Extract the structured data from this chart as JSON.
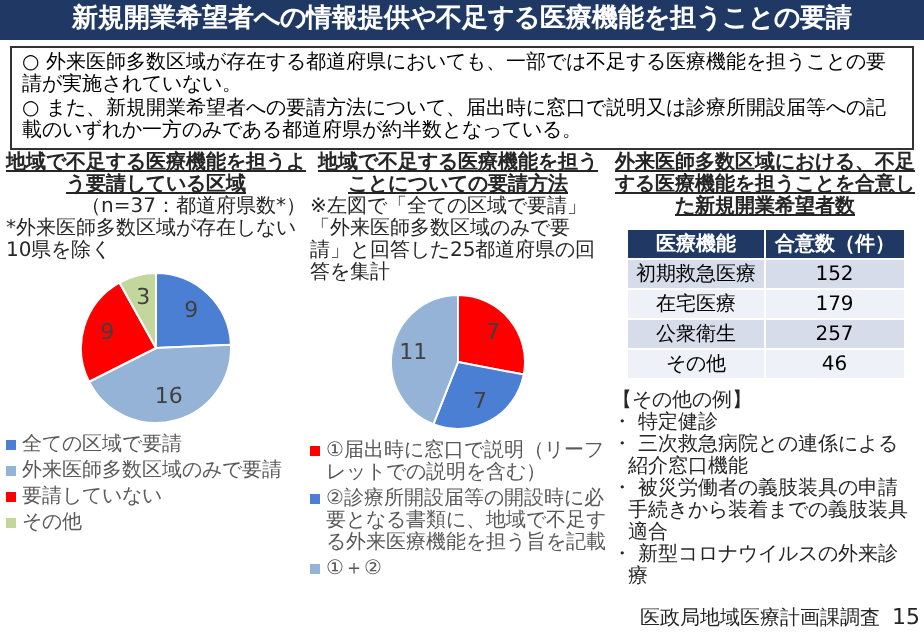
{
  "chart_data": [
    {
      "type": "other",
      "title": "新規開業希望者への情報提供や不足する医療機能を担うことの要請",
      "annotations": [
        "○ 外来医師多数区域が存在する都道府県においても、一部では不足する医療機能を担うことの要請が実施されていない。",
        "○ また、新規開業希望者への要請方法について、届出時に窓口で説明又は診療所開設届等への記載のいずれか一方のみである都道府県が約半数となっている。"
      ]
    },
    {
      "type": "pie",
      "title": "地域で不足する医療機能を担うよう要請している区域",
      "subtitle": "（n=37：都道府県数*）",
      "annotations": [
        "*外来医師多数区域が存在しない10県を除く"
      ],
      "categories": [
        "全ての区域で要請",
        "外来医師多数区域のみで要請",
        "要請していない",
        "その他"
      ],
      "values": [
        9,
        16,
        9,
        3
      ],
      "colors": [
        "#4a7fd4",
        "#95b3d7",
        "#ff0000",
        "#c3d69b"
      ],
      "data_labels": true,
      "legend": "bottom"
    },
    {
      "type": "pie",
      "title": "地域で不足する医療機能を担うことについての要請方法",
      "annotations": [
        "※左図で「全ての区域で要請」「外来医師多数区域のみで要請」と回答した25都道府県の回答を集計"
      ],
      "categories": [
        "①届出時に窓口で説明（リーフレットでの説明を含む）",
        "②診療所開設届等の開設時に必要となる書類に、地域で不足する外来医療機能を担う旨を記載",
        "①＋②"
      ],
      "values": [
        7,
        7,
        11
      ],
      "colors": [
        "#ff0000",
        "#4a7fd4",
        "#95b3d7"
      ],
      "data_labels": true,
      "legend": "bottom"
    },
    {
      "type": "other",
      "title": "外来医師多数区域における、不足する医療機能を担うことを合意した新規開業希望者数",
      "xlabel": "医療機能",
      "ylabel": "合意数（件）",
      "categories": [
        "初期救急医療",
        "在宅医療",
        "公衆衛生",
        "その他"
      ],
      "values": [
        152,
        179,
        257,
        46
      ],
      "data_labels": true,
      "annotations": [
        "【その他の例】",
        "・ 特定健診",
        "・ 三次救急病院との連係による紹介窓口機能",
        "・ 被災労働者の義肢装具の申請手続きから装着までの義肢装具適合",
        "・ 新型コロナウイルスの外来診療"
      ]
    },
    {
      "type": "other",
      "annotations": [
        "医政局地域医療計画課調査",
        "15"
      ]
    }
  ]
}
